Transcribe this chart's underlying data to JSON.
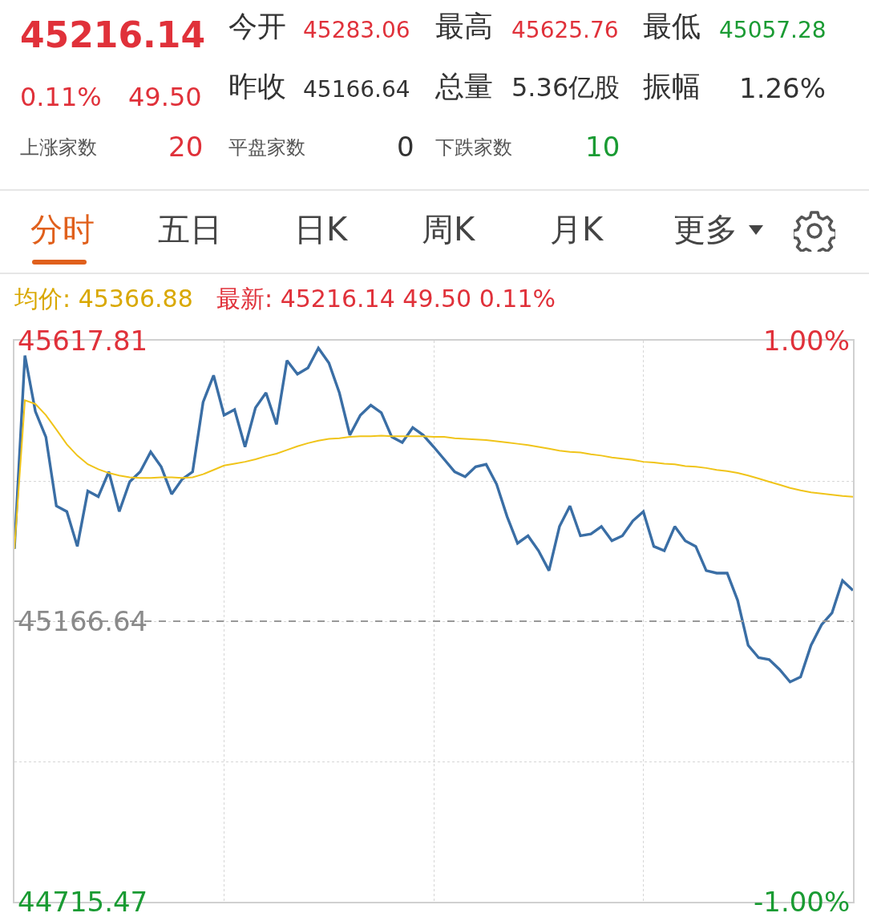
{
  "chart_data": {
    "type": "line",
    "categories": [
      null,
      null,
      null,
      null,
      null,
      null,
      null,
      null,
      null,
      null,
      null,
      null,
      null,
      null,
      null,
      null,
      null,
      null,
      null,
      null,
      null,
      null,
      null,
      null,
      null,
      null,
      null,
      null,
      null,
      null,
      null,
      null,
      null,
      null,
      null,
      null,
      null,
      null,
      null,
      null,
      null,
      null,
      null,
      null,
      null,
      null,
      null,
      null,
      null,
      null,
      null,
      null,
      null,
      null,
      null,
      null,
      null,
      null,
      null,
      null,
      null,
      null,
      null,
      null,
      null,
      null,
      null,
      null,
      null,
      null,
      null,
      null,
      null,
      null,
      null,
      null,
      null,
      null,
      null,
      null,
      null
    ],
    "series": [
      {
        "color": "#3a6ea5",
        "values": [
          45283,
          45594,
          45504,
          45463,
          45352,
          45343,
          45287,
          45376,
          45367,
          45407,
          45343,
          45391,
          45407,
          45439,
          45415,
          45371,
          45395,
          45407,
          45519,
          45562,
          45498,
          45507,
          45447,
          45510,
          45534,
          45483,
          45586,
          45564,
          45574,
          45606,
          45582,
          45534,
          45466,
          45498,
          45514,
          45502,
          45463,
          45454,
          45478,
          45466,
          45447,
          45427,
          45407,
          45399,
          45415,
          45419,
          45387,
          45335,
          45292,
          45304,
          45280,
          45248,
          45319,
          45352,
          45304,
          45307,
          45319,
          45296,
          45304,
          45328,
          45343,
          45287,
          45280,
          45319,
          45296,
          45287,
          45248,
          45244,
          45244,
          45200,
          45128,
          45108,
          45105,
          45089,
          45069,
          45077,
          45128,
          45161,
          45180,
          45232,
          45216.14
        ]
      },
      {
        "color": "#f0c419",
        "values": [
          45283,
          45522,
          45516,
          45498,
          45475,
          45451,
          45433,
          45419,
          45411,
          45405,
          45401,
          45398,
          45397,
          45397,
          45398,
          45398,
          45397,
          45398,
          45403,
          45410,
          45417,
          45420,
          45423,
          45427,
          45432,
          45436,
          45442,
          45448,
          45453,
          45457,
          45460,
          45461,
          45463,
          45464,
          45464,
          45465,
          45464,
          45464,
          45464,
          45464,
          45463,
          45463,
          45461,
          45460,
          45459,
          45458,
          45456,
          45454,
          45452,
          45450,
          45447,
          45444,
          45441,
          45439,
          45438,
          45435,
          45433,
          45430,
          45428,
          45426,
          45423,
          45422,
          45420,
          45419,
          45416,
          45415,
          45413,
          45410,
          45408,
          45405,
          45401,
          45396,
          45391,
          45386,
          45381,
          45377,
          45374,
          45372,
          45370,
          45368,
          45366.88
        ]
      }
    ],
    "ylim": [
      44715.47,
      45617.81
    ],
    "yticks": [
      44715.47,
      {
        "value": 44941.06,
        "label": null
      },
      45166.64,
      {
        "value": 45392.23,
        "label": null
      },
      45617.81
    ],
    "y2lim": [
      -1,
      1
    ],
    "y2ticks": [
      {
        "value": -1,
        "label": "-1.00%"
      },
      {
        "value": 1,
        "label": "1.00%"
      }
    ],
    "ref_lines": [
      {
        "axis": "y",
        "value": 45166.64,
        "line_style": "dashed",
        "color": "#999999"
      }
    ],
    "grid": true,
    "annotations": [
      "45216.14",
      "今开",
      "45283.06",
      "最高",
      "45625.76",
      "最低",
      "45057.28",
      "0.11%",
      "49.50",
      "昨收",
      "45166.64",
      "总量",
      "5.36亿股",
      "振幅",
      "1.26%",
      "上涨家数",
      "20",
      "平盘家数",
      "0",
      "下跌家数",
      "10",
      "分时",
      "五日",
      "日K",
      "周K",
      "月K",
      "更多",
      "均价: 45366.88",
      "最新: 45216.14 49.50 0.11%"
    ]
  }
}
